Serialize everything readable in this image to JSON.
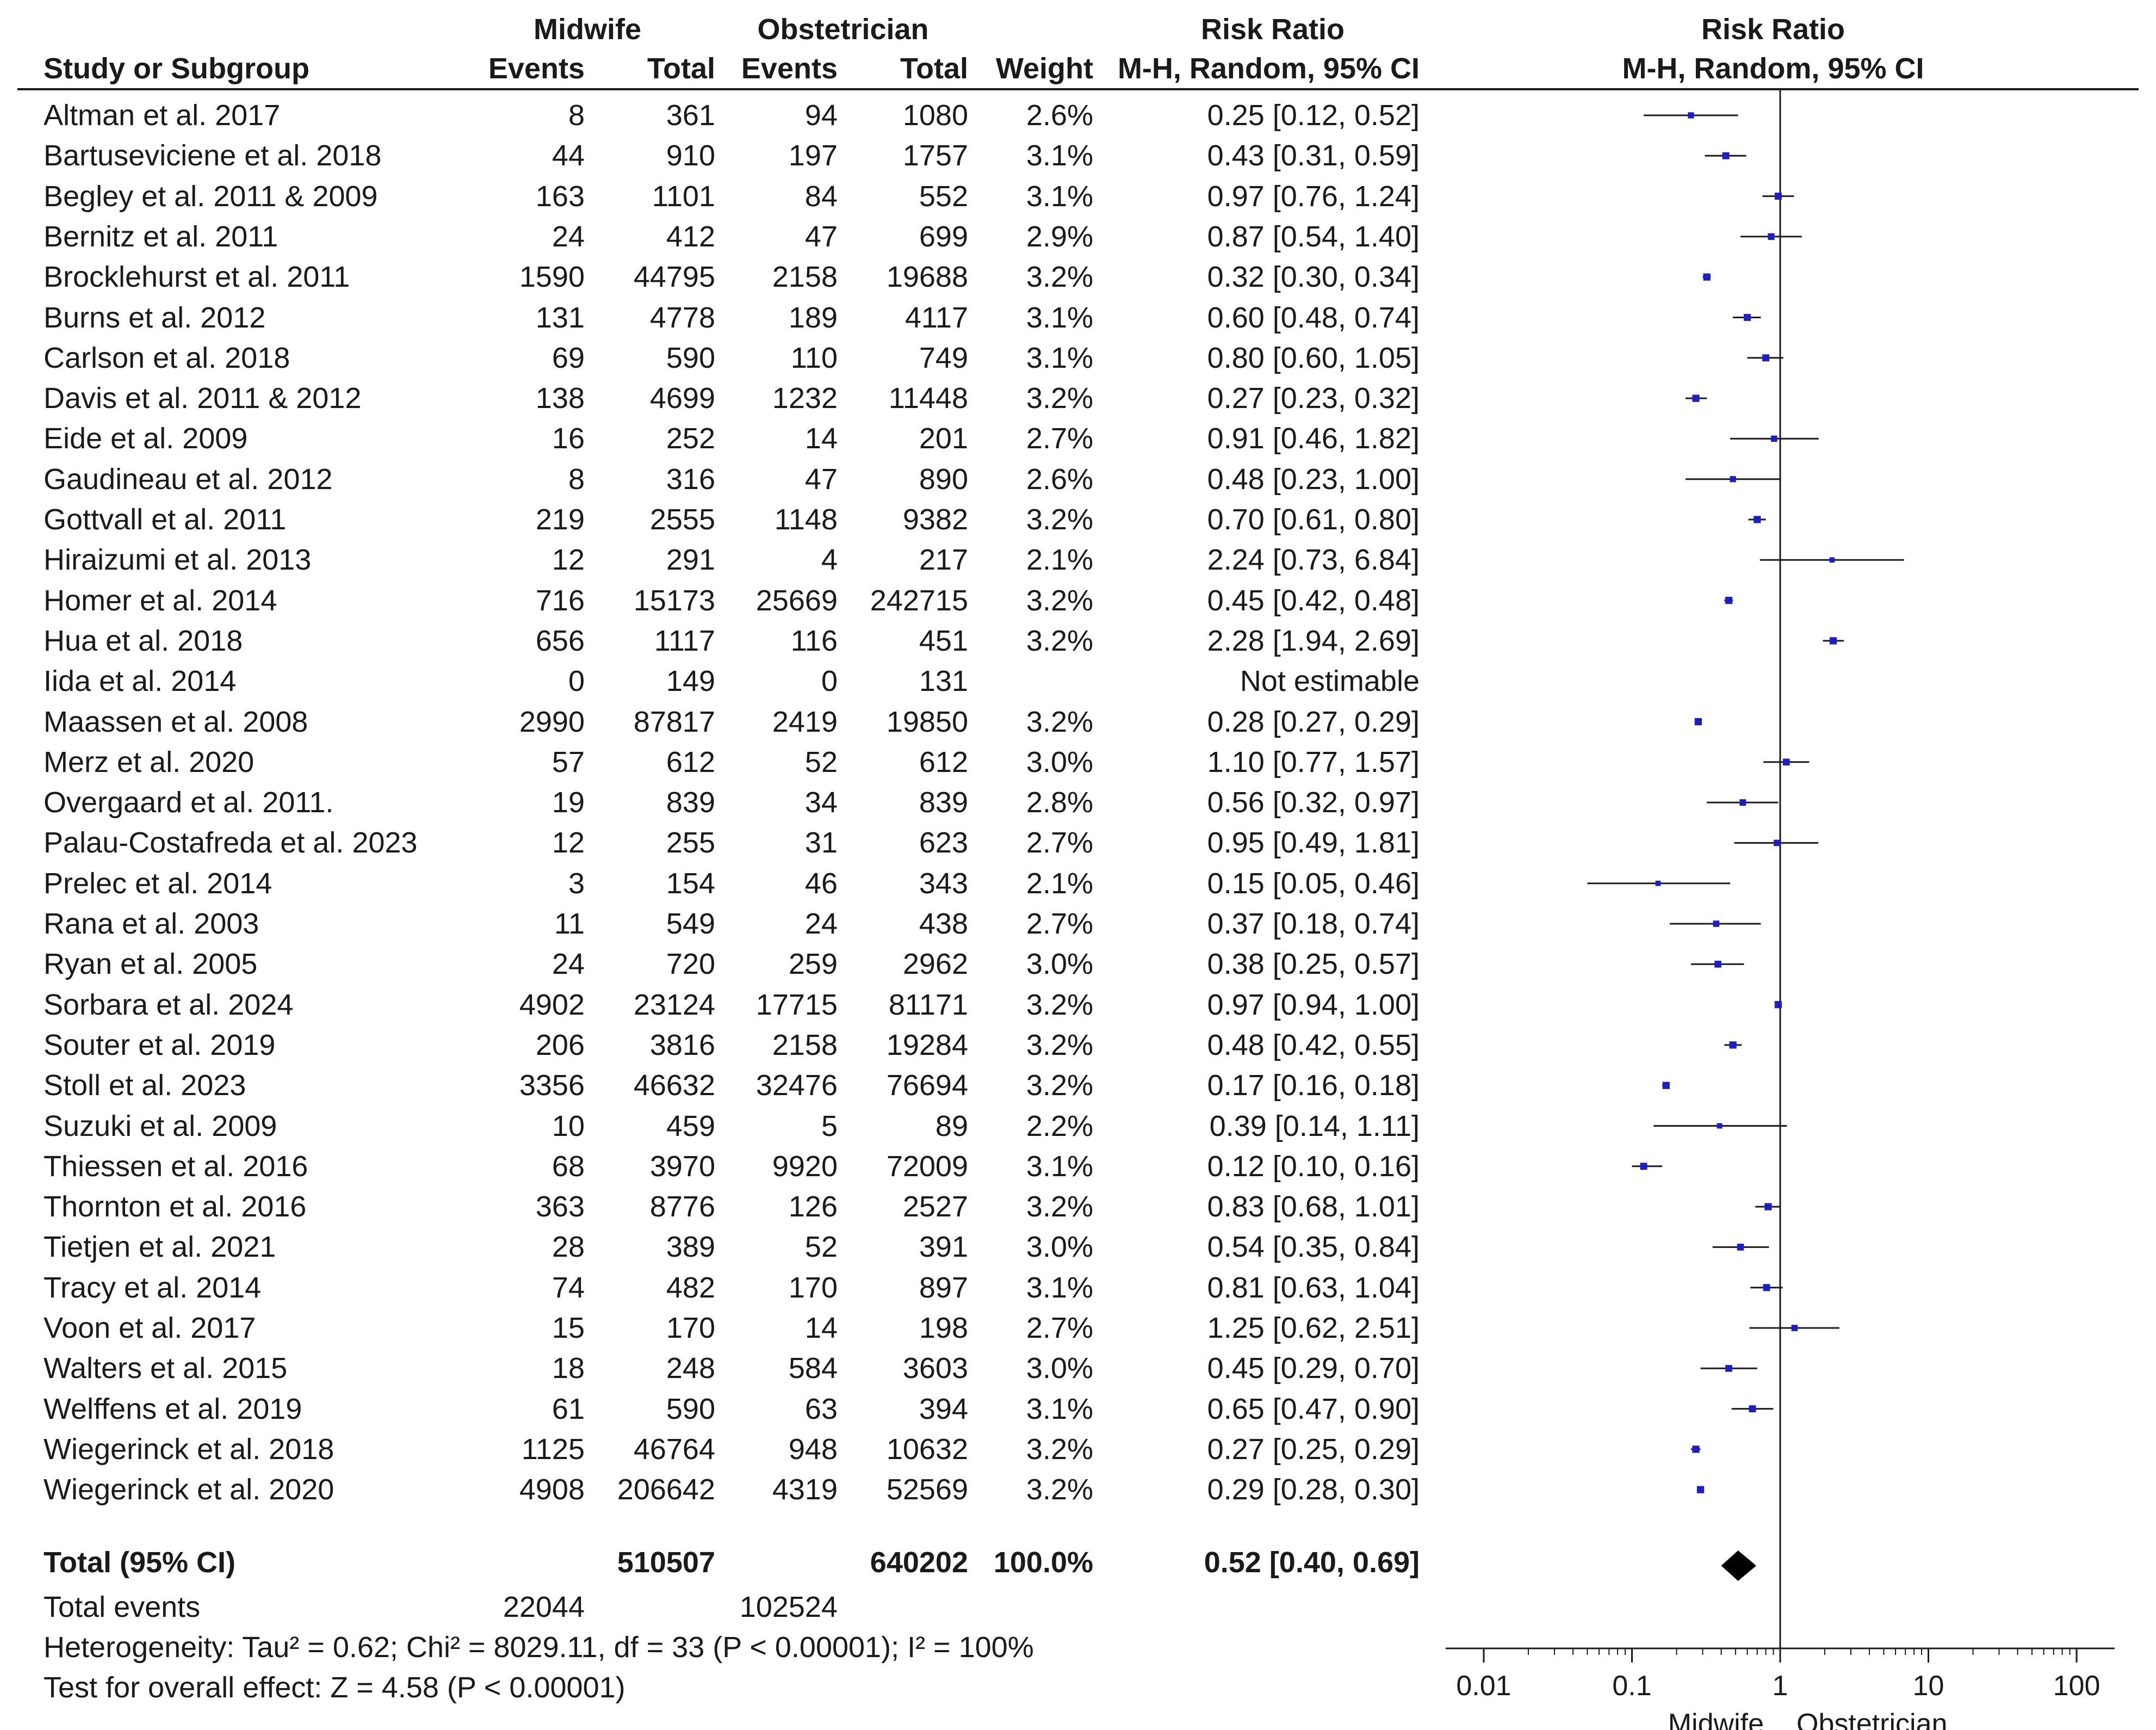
{
  "headers": {
    "midwife_group": "Midwife",
    "obstetrician_group": "Obstetrician",
    "risk_ratio_col": "Risk Ratio",
    "risk_ratio_sub": "M-H, Random, 95% CI",
    "plot_title": "Risk Ratio",
    "plot_sub": "M-H, Random, 95% CI",
    "study_col": "Study or Subgroup",
    "events_a": "Events",
    "total_a": "Total",
    "events_b": "Events",
    "total_b": "Total",
    "weight": "Weight"
  },
  "studies": [
    {
      "name": "Altman et al. 2017",
      "e1": "8",
      "t1": "361",
      "e2": "94",
      "t2": "1080",
      "w": "2.6%",
      "rr": "0.25 [0.12, 0.52]"
    },
    {
      "name": "Bartuseviciene et al. 2018",
      "e1": "44",
      "t1": "910",
      "e2": "197",
      "t2": "1757",
      "w": "3.1%",
      "rr": "0.43 [0.31, 0.59]"
    },
    {
      "name": "Begley et al. 2011 & 2009",
      "e1": "163",
      "t1": "1101",
      "e2": "84",
      "t2": "552",
      "w": "3.1%",
      "rr": "0.97 [0.76, 1.24]"
    },
    {
      "name": "Bernitz et al. 2011",
      "e1": "24",
      "t1": "412",
      "e2": "47",
      "t2": "699",
      "w": "2.9%",
      "rr": "0.87 [0.54, 1.40]"
    },
    {
      "name": "Brocklehurst et al. 2011",
      "e1": "1590",
      "t1": "44795",
      "e2": "2158",
      "t2": "19688",
      "w": "3.2%",
      "rr": "0.32 [0.30, 0.34]"
    },
    {
      "name": "Burns et al. 2012",
      "e1": "131",
      "t1": "4778",
      "e2": "189",
      "t2": "4117",
      "w": "3.1%",
      "rr": "0.60 [0.48, 0.74]"
    },
    {
      "name": "Carlson et al. 2018",
      "e1": "69",
      "t1": "590",
      "e2": "110",
      "t2": "749",
      "w": "3.1%",
      "rr": "0.80 [0.60, 1.05]"
    },
    {
      "name": "Davis et al. 2011 & 2012",
      "e1": "138",
      "t1": "4699",
      "e2": "1232",
      "t2": "11448",
      "w": "3.2%",
      "rr": "0.27 [0.23, 0.32]"
    },
    {
      "name": "Eide et al. 2009",
      "e1": "16",
      "t1": "252",
      "e2": "14",
      "t2": "201",
      "w": "2.7%",
      "rr": "0.91 [0.46, 1.82]"
    },
    {
      "name": "Gaudineau  et al. 2012",
      "e1": "8",
      "t1": "316",
      "e2": "47",
      "t2": "890",
      "w": "2.6%",
      "rr": "0.48 [0.23, 1.00]"
    },
    {
      "name": "Gottvall  et al. 2011",
      "e1": "219",
      "t1": "2555",
      "e2": "1148",
      "t2": "9382",
      "w": "3.2%",
      "rr": "0.70 [0.61, 0.80]"
    },
    {
      "name": "Hiraizumi et al. 2013",
      "e1": "12",
      "t1": "291",
      "e2": "4",
      "t2": "217",
      "w": "2.1%",
      "rr": "2.24 [0.73, 6.84]"
    },
    {
      "name": "Homer et al. 2014",
      "e1": "716",
      "t1": "15173",
      "e2": "25669",
      "t2": "242715",
      "w": "3.2%",
      "rr": "0.45 [0.42, 0.48]"
    },
    {
      "name": "Hua et al. 2018",
      "e1": "656",
      "t1": "1117",
      "e2": "116",
      "t2": "451",
      "w": "3.2%",
      "rr": "2.28 [1.94, 2.69]"
    },
    {
      "name": "Iida et al. 2014",
      "e1": "0",
      "t1": "149",
      "e2": "0",
      "t2": "131",
      "w": "",
      "rr": "Not estimable"
    },
    {
      "name": "Maassen et al. 2008",
      "e1": "2990",
      "t1": "87817",
      "e2": "2419",
      "t2": "19850",
      "w": "3.2%",
      "rr": "0.28 [0.27, 0.29]"
    },
    {
      "name": "Merz et al. 2020",
      "e1": "57",
      "t1": "612",
      "e2": "52",
      "t2": "612",
      "w": "3.0%",
      "rr": "1.10 [0.77, 1.57]"
    },
    {
      "name": "Overgaard et al. 2011.",
      "e1": "19",
      "t1": "839",
      "e2": "34",
      "t2": "839",
      "w": "2.8%",
      "rr": "0.56 [0.32, 0.97]"
    },
    {
      "name": "Palau-Costafreda et al. 2023",
      "e1": "12",
      "t1": "255",
      "e2": "31",
      "t2": "623",
      "w": "2.7%",
      "rr": "0.95 [0.49, 1.81]"
    },
    {
      "name": "Prelec et al. 2014",
      "e1": "3",
      "t1": "154",
      "e2": "46",
      "t2": "343",
      "w": "2.1%",
      "rr": "0.15 [0.05, 0.46]"
    },
    {
      "name": "Rana et al. 2003",
      "e1": "11",
      "t1": "549",
      "e2": "24",
      "t2": "438",
      "w": "2.7%",
      "rr": "0.37 [0.18, 0.74]"
    },
    {
      "name": "Ryan et al. 2005",
      "e1": "24",
      "t1": "720",
      "e2": "259",
      "t2": "2962",
      "w": "3.0%",
      "rr": "0.38 [0.25, 0.57]"
    },
    {
      "name": "Sorbara et al. 2024",
      "e1": "4902",
      "t1": "23124",
      "e2": "17715",
      "t2": "81171",
      "w": "3.2%",
      "rr": "0.97 [0.94, 1.00]"
    },
    {
      "name": "Souter et al. 2019",
      "e1": "206",
      "t1": "3816",
      "e2": "2158",
      "t2": "19284",
      "w": "3.2%",
      "rr": "0.48 [0.42, 0.55]"
    },
    {
      "name": "Stoll et al. 2023",
      "e1": "3356",
      "t1": "46632",
      "e2": "32476",
      "t2": "76694",
      "w": "3.2%",
      "rr": "0.17 [0.16, 0.18]"
    },
    {
      "name": "Suzuki et al. 2009",
      "e1": "10",
      "t1": "459",
      "e2": "5",
      "t2": "89",
      "w": "2.2%",
      "rr": "0.39 [0.14, 1.11]"
    },
    {
      "name": "Thiessen et al. 2016",
      "e1": "68",
      "t1": "3970",
      "e2": "9920",
      "t2": "72009",
      "w": "3.1%",
      "rr": "0.12 [0.10, 0.16]"
    },
    {
      "name": "Thornton et al. 2016",
      "e1": "363",
      "t1": "8776",
      "e2": "126",
      "t2": "2527",
      "w": "3.2%",
      "rr": "0.83 [0.68, 1.01]"
    },
    {
      "name": "Tietjen et al. 2021",
      "e1": "28",
      "t1": "389",
      "e2": "52",
      "t2": "391",
      "w": "3.0%",
      "rr": "0.54 [0.35, 0.84]"
    },
    {
      "name": "Tracy et al. 2014",
      "e1": "74",
      "t1": "482",
      "e2": "170",
      "t2": "897",
      "w": "3.1%",
      "rr": "0.81 [0.63, 1.04]"
    },
    {
      "name": "Voon et al. 2017",
      "e1": "15",
      "t1": "170",
      "e2": "14",
      "t2": "198",
      "w": "2.7%",
      "rr": "1.25 [0.62, 2.51]"
    },
    {
      "name": "Walters et al. 2015",
      "e1": "18",
      "t1": "248",
      "e2": "584",
      "t2": "3603",
      "w": "3.0%",
      "rr": "0.45 [0.29, 0.70]"
    },
    {
      "name": "Welffens et al. 2019",
      "e1": "61",
      "t1": "590",
      "e2": "63",
      "t2": "394",
      "w": "3.1%",
      "rr": "0.65 [0.47, 0.90]"
    },
    {
      "name": "Wiegerinck et al. 2018",
      "e1": "1125",
      "t1": "46764",
      "e2": "948",
      "t2": "10632",
      "w": "3.2%",
      "rr": "0.27 [0.25, 0.29]"
    },
    {
      "name": "Wiegerinck et al. 2020",
      "e1": "4908",
      "t1": "206642",
      "e2": "4319",
      "t2": "52569",
      "w": "3.2%",
      "rr": "0.29 [0.28, 0.30]"
    }
  ],
  "total": {
    "label": "Total (95% CI)",
    "t1": "510507",
    "t2": "640202",
    "w": "100.0%",
    "rr": "0.52 [0.40, 0.69]",
    "events_label": "Total events",
    "e1": "22044",
    "e2": "102524"
  },
  "heterogeneity": "Heterogeneity: Tau² = 0.62; Chi² = 8029.11, df = 33 (P < 0.00001); I² = 100%",
  "overall_effect": "Test for overall effect: Z = 4.58 (P < 0.00001)",
  "colors": {
    "marker": "#1f1fbf",
    "text": "#1a1a1a",
    "line": "#1a1a1a",
    "diamond": "#000000"
  },
  "chart_data": {
    "type": "forest",
    "title": "Risk Ratio",
    "subtitle": "M-H, Random, 95% CI",
    "scale": "log",
    "xlim": [
      0.01,
      100
    ],
    "ticks": [
      0.01,
      0.1,
      1,
      10,
      100
    ],
    "tick_labels": [
      "0.01",
      "0.1",
      "1",
      "10",
      "100"
    ],
    "left_label": "Midwife",
    "right_label": "Obstetrician",
    "points": [
      {
        "rr": 0.25,
        "lo": 0.12,
        "hi": 0.52,
        "weight": 2.6
      },
      {
        "rr": 0.43,
        "lo": 0.31,
        "hi": 0.59,
        "weight": 3.1
      },
      {
        "rr": 0.97,
        "lo": 0.76,
        "hi": 1.24,
        "weight": 3.1
      },
      {
        "rr": 0.87,
        "lo": 0.54,
        "hi": 1.4,
        "weight": 2.9
      },
      {
        "rr": 0.32,
        "lo": 0.3,
        "hi": 0.34,
        "weight": 3.2
      },
      {
        "rr": 0.6,
        "lo": 0.48,
        "hi": 0.74,
        "weight": 3.1
      },
      {
        "rr": 0.8,
        "lo": 0.6,
        "hi": 1.05,
        "weight": 3.1
      },
      {
        "rr": 0.27,
        "lo": 0.23,
        "hi": 0.32,
        "weight": 3.2
      },
      {
        "rr": 0.91,
        "lo": 0.46,
        "hi": 1.82,
        "weight": 2.7
      },
      {
        "rr": 0.48,
        "lo": 0.23,
        "hi": 1.0,
        "weight": 2.6
      },
      {
        "rr": 0.7,
        "lo": 0.61,
        "hi": 0.8,
        "weight": 3.2
      },
      {
        "rr": 2.24,
        "lo": 0.73,
        "hi": 6.84,
        "weight": 2.1
      },
      {
        "rr": 0.45,
        "lo": 0.42,
        "hi": 0.48,
        "weight": 3.2
      },
      {
        "rr": 2.28,
        "lo": 1.94,
        "hi": 2.69,
        "weight": 3.2
      },
      null,
      {
        "rr": 0.28,
        "lo": 0.27,
        "hi": 0.29,
        "weight": 3.2
      },
      {
        "rr": 1.1,
        "lo": 0.77,
        "hi": 1.57,
        "weight": 3.0
      },
      {
        "rr": 0.56,
        "lo": 0.32,
        "hi": 0.97,
        "weight": 2.8
      },
      {
        "rr": 0.95,
        "lo": 0.49,
        "hi": 1.81,
        "weight": 2.7
      },
      {
        "rr": 0.15,
        "lo": 0.05,
        "hi": 0.46,
        "weight": 2.1
      },
      {
        "rr": 0.37,
        "lo": 0.18,
        "hi": 0.74,
        "weight": 2.7
      },
      {
        "rr": 0.38,
        "lo": 0.25,
        "hi": 0.57,
        "weight": 3.0
      },
      {
        "rr": 0.97,
        "lo": 0.94,
        "hi": 1.0,
        "weight": 3.2
      },
      {
        "rr": 0.48,
        "lo": 0.42,
        "hi": 0.55,
        "weight": 3.2
      },
      {
        "rr": 0.17,
        "lo": 0.16,
        "hi": 0.18,
        "weight": 3.2
      },
      {
        "rr": 0.39,
        "lo": 0.14,
        "hi": 1.11,
        "weight": 2.2
      },
      {
        "rr": 0.12,
        "lo": 0.1,
        "hi": 0.16,
        "weight": 3.1
      },
      {
        "rr": 0.83,
        "lo": 0.68,
        "hi": 1.01,
        "weight": 3.2
      },
      {
        "rr": 0.54,
        "lo": 0.35,
        "hi": 0.84,
        "weight": 3.0
      },
      {
        "rr": 0.81,
        "lo": 0.63,
        "hi": 1.04,
        "weight": 3.1
      },
      {
        "rr": 1.25,
        "lo": 0.62,
        "hi": 2.51,
        "weight": 2.7
      },
      {
        "rr": 0.45,
        "lo": 0.29,
        "hi": 0.7,
        "weight": 3.0
      },
      {
        "rr": 0.65,
        "lo": 0.47,
        "hi": 0.9,
        "weight": 3.1
      },
      {
        "rr": 0.27,
        "lo": 0.25,
        "hi": 0.29,
        "weight": 3.2
      },
      {
        "rr": 0.29,
        "lo": 0.28,
        "hi": 0.3,
        "weight": 3.2
      }
    ],
    "pooled": {
      "rr": 0.52,
      "lo": 0.4,
      "hi": 0.69
    }
  }
}
